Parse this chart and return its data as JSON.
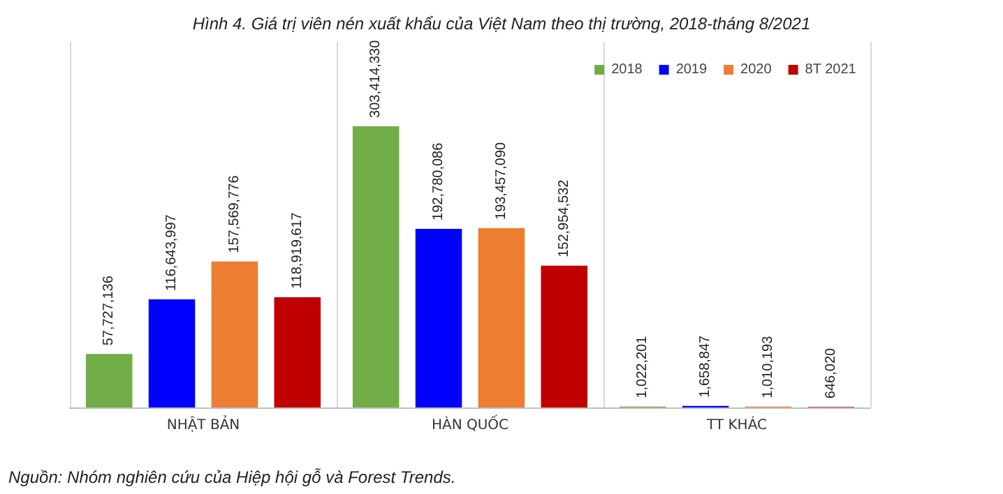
{
  "chart_data": {
    "type": "bar",
    "title": "Hình 4. Giá trị viên nén xuất khẩu của Việt Nam theo thị trường, 2018-tháng 8/2021",
    "categories": [
      "NHẬT BẢN",
      "HÀN QUỐC",
      "TT KHÁC"
    ],
    "series": [
      {
        "name": "2018",
        "color": "#70ad47",
        "values": [
          57727136,
          303414330,
          1022201
        ],
        "value_labels": [
          "57,727,136",
          "303,414,330",
          "1,022,201"
        ]
      },
      {
        "name": "2019",
        "color": "#0000ff",
        "values": [
          116643997,
          192780086,
          1658847
        ],
        "value_labels": [
          "116,643,997",
          "192,780,086",
          "1,658,847"
        ]
      },
      {
        "name": "2020",
        "color": "#ed7d31",
        "values": [
          157569776,
          193457090,
          1010193
        ],
        "value_labels": [
          "157,569,776",
          "193,457,090",
          "1,010,193"
        ]
      },
      {
        "name": "8T 2021",
        "color": "#c00000",
        "values": [
          118919617,
          152954532,
          646020
        ],
        "value_labels": [
          "118,919,617",
          "152,954,532",
          "646,020"
        ]
      }
    ],
    "legend": "top right",
    "grid": "x",
    "tick_labels": "x",
    "annotations": [
      "Nguồn: Nhóm nghiên cứu của Hiệp hội gỗ và Forest Trends."
    ]
  }
}
